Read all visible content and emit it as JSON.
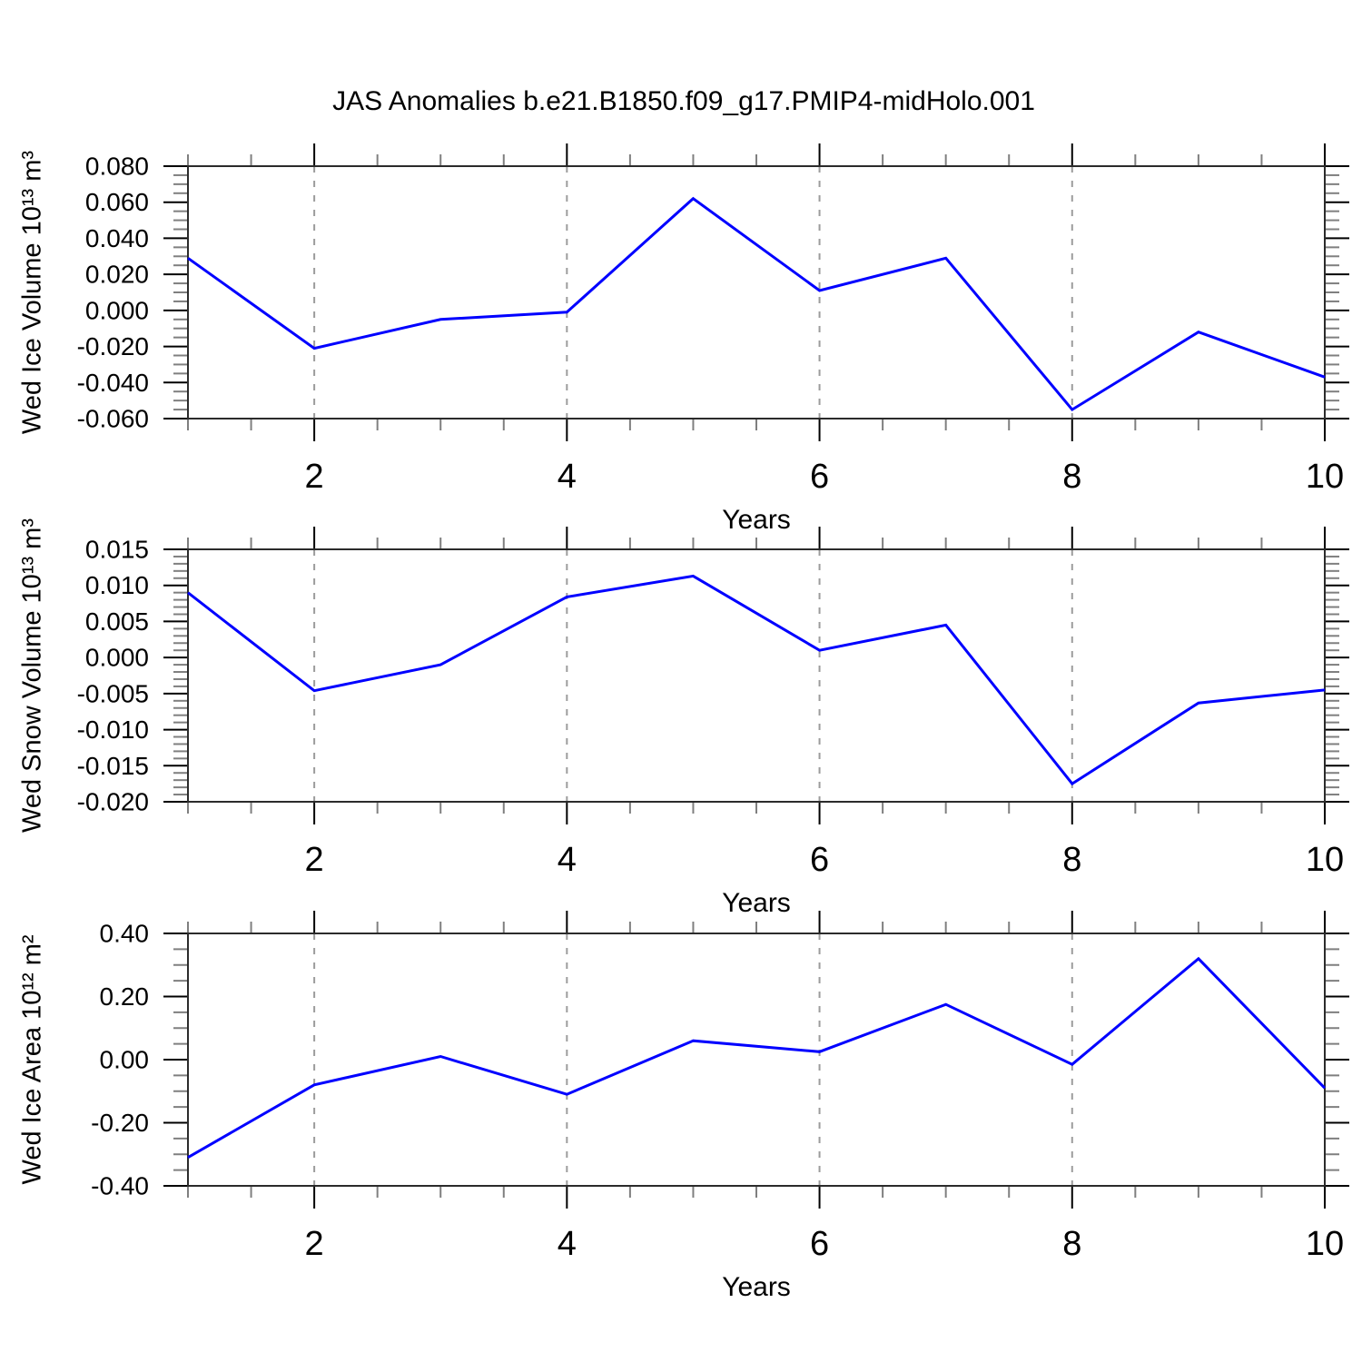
{
  "title": "JAS Anomalies b.e21.B1850.f09_g17.PMIP4-midHolo.001",
  "colors": {
    "line": "#0000ff",
    "grid": "#9c9c9c",
    "frame": "#2b2b2b",
    "major_tick": "#000000",
    "minor_tick": "#7f7f7f",
    "text": "#000000"
  },
  "chart_data": [
    {
      "type": "line",
      "ylabel": "Wed Ice Volume 10¹³ m³",
      "xlabel": "Years",
      "x": [
        1,
        2,
        3,
        4,
        5,
        6,
        7,
        8,
        9,
        10
      ],
      "values": [
        0.029,
        -0.021,
        -0.005,
        -0.001,
        0.062,
        0.011,
        0.029,
        -0.055,
        -0.012,
        -0.037
      ],
      "xlim": [
        1,
        10
      ],
      "ylim": [
        -0.06,
        0.08
      ],
      "y_tick_values": [
        0.08,
        0.06,
        0.04,
        0.02,
        0.0,
        -0.02,
        -0.04,
        -0.06
      ],
      "y_tick_labels": [
        "0.080",
        "0.060",
        "0.040",
        "0.020",
        "0.000",
        "-0.020",
        "-0.040",
        "-0.060"
      ],
      "y_minor_step": 0.005,
      "x_tick_values": [
        2,
        4,
        6,
        8,
        10
      ],
      "x_tick_labels": [
        "2",
        "4",
        "6",
        "8",
        "10"
      ],
      "x_minor_step": 0.5,
      "grid_x": [
        2,
        4,
        6,
        8
      ],
      "grid_style": "dashed",
      "legend": "none"
    },
    {
      "type": "line",
      "ylabel": "Wed Snow Volume 10¹³ m³",
      "xlabel": "Years",
      "x": [
        1,
        2,
        3,
        4,
        5,
        6,
        7,
        8,
        9,
        10
      ],
      "values": [
        0.009,
        -0.0046,
        -0.001,
        0.0084,
        0.0113,
        0.001,
        0.0045,
        -0.0175,
        -0.0063,
        -0.0045
      ],
      "xlim": [
        1,
        10
      ],
      "ylim": [
        -0.02,
        0.015
      ],
      "y_tick_values": [
        0.015,
        0.01,
        0.005,
        0.0,
        -0.005,
        -0.01,
        -0.015,
        -0.02
      ],
      "y_tick_labels": [
        "0.015",
        "0.010",
        "0.005",
        "0.000",
        "-0.005",
        "-0.010",
        "-0.015",
        "-0.020"
      ],
      "y_minor_step": 0.001,
      "x_tick_values": [
        2,
        4,
        6,
        8,
        10
      ],
      "x_tick_labels": [
        "2",
        "4",
        "6",
        "8",
        "10"
      ],
      "x_minor_step": 0.5,
      "grid_x": [
        2,
        4,
        6,
        8
      ],
      "grid_style": "dashed",
      "legend": "none"
    },
    {
      "type": "line",
      "ylabel": "Wed Ice Area 10¹² m²",
      "xlabel": "Years",
      "x": [
        1,
        2,
        3,
        4,
        5,
        6,
        7,
        8,
        9,
        10
      ],
      "values": [
        -0.31,
        -0.08,
        0.01,
        -0.11,
        0.06,
        0.025,
        0.175,
        -0.015,
        0.32,
        -0.09
      ],
      "xlim": [
        1,
        10
      ],
      "ylim": [
        -0.4,
        0.4
      ],
      "y_tick_values": [
        0.4,
        0.2,
        0.0,
        -0.2,
        -0.4
      ],
      "y_tick_labels": [
        "0.40",
        "0.20",
        "0.00",
        "-0.20",
        "-0.40"
      ],
      "y_minor_step": 0.05,
      "x_tick_values": [
        2,
        4,
        6,
        8,
        10
      ],
      "x_tick_labels": [
        "2",
        "4",
        "6",
        "8",
        "10"
      ],
      "x_minor_step": 0.5,
      "grid_x": [
        2,
        4,
        6,
        8
      ],
      "grid_style": "dashed",
      "legend": "none"
    }
  ]
}
